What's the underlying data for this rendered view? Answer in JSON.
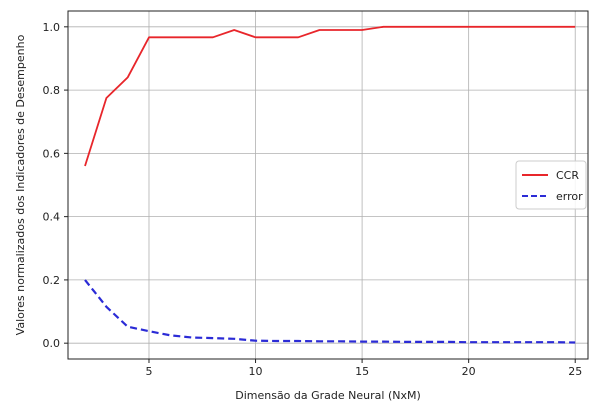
{
  "chart_data": {
    "type": "line",
    "title": "",
    "xlabel": "Dimensão da Grade Neural (NxM)",
    "ylabel": "Valores normalizados dos Indicadores de Desempenho",
    "xlim": [
      1.2,
      25.6
    ],
    "ylim": [
      -0.05,
      1.05
    ],
    "xticks": [
      5,
      10,
      15,
      20,
      25
    ],
    "yticks": [
      0.0,
      0.2,
      0.4,
      0.6,
      0.8,
      1.0
    ],
    "ytick_labels": [
      "0.0",
      "0.2",
      "0.4",
      "0.6",
      "0.8",
      "1.0"
    ],
    "grid": true,
    "legend_position": "center-right",
    "x": [
      2,
      3,
      4,
      5,
      6,
      7,
      8,
      9,
      10,
      11,
      12,
      13,
      14,
      15,
      16,
      17,
      18,
      19,
      20,
      21,
      22,
      23,
      24,
      25
    ],
    "series": [
      {
        "name": "CCR",
        "color": "#e8262b",
        "style": "solid",
        "values": [
          0.56,
          0.775,
          0.84,
          0.967,
          0.967,
          0.967,
          0.967,
          0.99,
          0.967,
          0.967,
          0.967,
          0.99,
          0.99,
          0.99,
          1.0,
          1.0,
          1.0,
          1.0,
          1.0,
          1.0,
          1.0,
          1.0,
          1.0,
          1.0
        ]
      },
      {
        "name": "error",
        "color": "#2b2bd6",
        "style": "dashed",
        "values": [
          0.2,
          0.115,
          0.052,
          0.038,
          0.025,
          0.018,
          0.016,
          0.014,
          0.008,
          0.007,
          0.007,
          0.006,
          0.006,
          0.005,
          0.005,
          0.004,
          0.004,
          0.004,
          0.003,
          0.003,
          0.003,
          0.003,
          0.003,
          0.002
        ]
      }
    ]
  }
}
